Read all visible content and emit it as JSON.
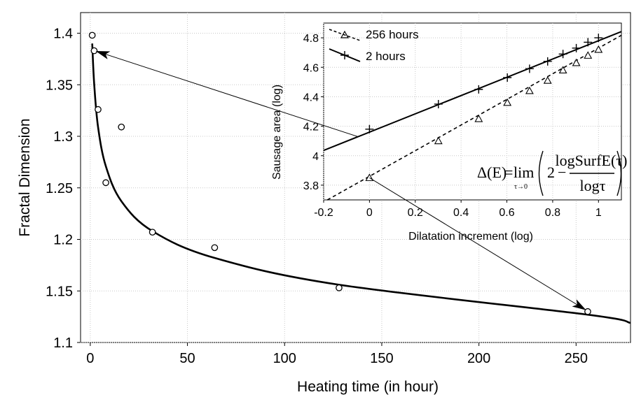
{
  "chart_data": [
    {
      "type": "scatter",
      "title": "",
      "xlabel": "Heating time (in hour)",
      "ylabel": "Fractal Dimension",
      "xlim": [
        -5,
        278
      ],
      "ylim": [
        1.1,
        1.42
      ],
      "xticks": [
        0,
        50,
        100,
        150,
        200,
        250
      ],
      "yticks": [
        1.1,
        1.15,
        1.2,
        1.25,
        1.3,
        1.35,
        1.4
      ],
      "xtick_labels": [
        "0",
        "50",
        "100",
        "150",
        "200",
        "250"
      ],
      "ytick_labels": [
        "1.1",
        "1.15",
        "1.2",
        "1.25",
        "1.3",
        "1.35",
        "1.4"
      ],
      "grid": true,
      "series": [
        {
          "marker": "circle",
          "x": [
            1,
            2,
            4,
            8,
            16,
            32,
            64,
            128,
            256
          ],
          "y": [
            1.398,
            1.383,
            1.326,
            1.255,
            1.309,
            1.207,
            1.192,
            1.153,
            1.13
          ]
        },
        {
          "style": "fitted-curve",
          "x": [
            1,
            2,
            4,
            8,
            16,
            32,
            64,
            128,
            256,
            278
          ],
          "y": [
            1.39,
            1.351,
            1.309,
            1.271,
            1.237,
            1.208,
            1.182,
            1.156,
            1.127,
            1.119
          ]
        }
      ],
      "annotations": [
        {
          "type": "arrow",
          "from": "inset-2-hours-line",
          "to_point": [
            2,
            1.383
          ]
        },
        {
          "type": "arrow",
          "from": "inset-256-hours-line",
          "to_point": [
            256,
            1.13
          ]
        }
      ]
    },
    {
      "type": "line",
      "inset": true,
      "title": "",
      "xlabel": "Dilatation increment (log)",
      "ylabel": "Sausage area (log)",
      "xlim": [
        -0.2,
        1.1
      ],
      "ylim": [
        3.7,
        4.9
      ],
      "xticks": [
        -0.2,
        0,
        0.2,
        0.4,
        0.6,
        0.8,
        1
      ],
      "yticks": [
        3.8,
        4,
        4.2,
        4.4,
        4.6,
        4.8
      ],
      "xtick_labels": [
        "-0.2",
        "0",
        "0.2",
        "0.4",
        "0.6",
        "0.8",
        "1"
      ],
      "ytick_labels": [
        "3.8",
        "4",
        "4.2",
        "4.4",
        "4.6",
        "4.8"
      ],
      "grid": true,
      "legend_position": "top-left",
      "series": [
        {
          "name": "256 hours",
          "marker": "triangle",
          "line": "dashed",
          "x": [
            0,
            0.301,
            0.477,
            0.602,
            0.699,
            0.778,
            0.845,
            0.903,
            0.954,
            1.0
          ],
          "y": [
            3.85,
            4.1,
            4.25,
            4.36,
            4.44,
            4.51,
            4.58,
            4.63,
            4.68,
            4.72
          ],
          "fit": {
            "slope": 0.87,
            "intercept": 3.86
          }
        },
        {
          "name": "2 hours",
          "marker": "plus",
          "line": "solid",
          "x": [
            0,
            0.301,
            0.477,
            0.602,
            0.699,
            0.778,
            0.845,
            0.903,
            0.954,
            1.0
          ],
          "y": [
            4.18,
            4.35,
            4.45,
            4.53,
            4.59,
            4.64,
            4.69,
            4.73,
            4.77,
            4.8
          ],
          "fit": {
            "slope": 0.62,
            "intercept": 4.16
          }
        }
      ],
      "formula": {
        "lhs": "Δ(E)",
        "eq": "=",
        "lim": "lim",
        "lim_sub": "τ→0",
        "two": "2",
        "minus": "−",
        "numerator": "logSurfE(τ)",
        "denominator": "logτ"
      }
    }
  ]
}
